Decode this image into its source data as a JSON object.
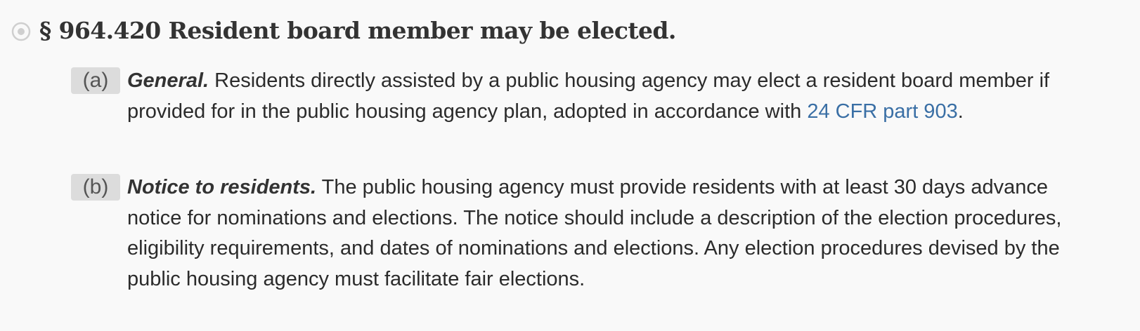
{
  "section": {
    "title": "§ 964.420 Resident board member may be elected."
  },
  "paragraphs": [
    {
      "marker": "(a)",
      "heading": "General.",
      "text_before_link": " Residents directly assisted by a public housing agency may elect a resident board member if provided for in the public housing agency plan, adopted in accordance with ",
      "link_text": "24 CFR part 903",
      "text_after_link": "."
    },
    {
      "marker": "(b)",
      "heading": "Notice to residents.",
      "text": " The public housing agency must provide residents with at least 30 days advance notice for nominations and elections. The notice should include a description of the election procedures, eligibility requirements, and dates of nominations and elections. Any election procedures devised by the public housing agency must facilitate fair elections."
    }
  ],
  "colors": {
    "link": "#3a6fa5",
    "marker_background": "#dcdcdc",
    "page_background": "#f9f9f9"
  },
  "icons": {
    "section_anchor": "target-icon"
  }
}
